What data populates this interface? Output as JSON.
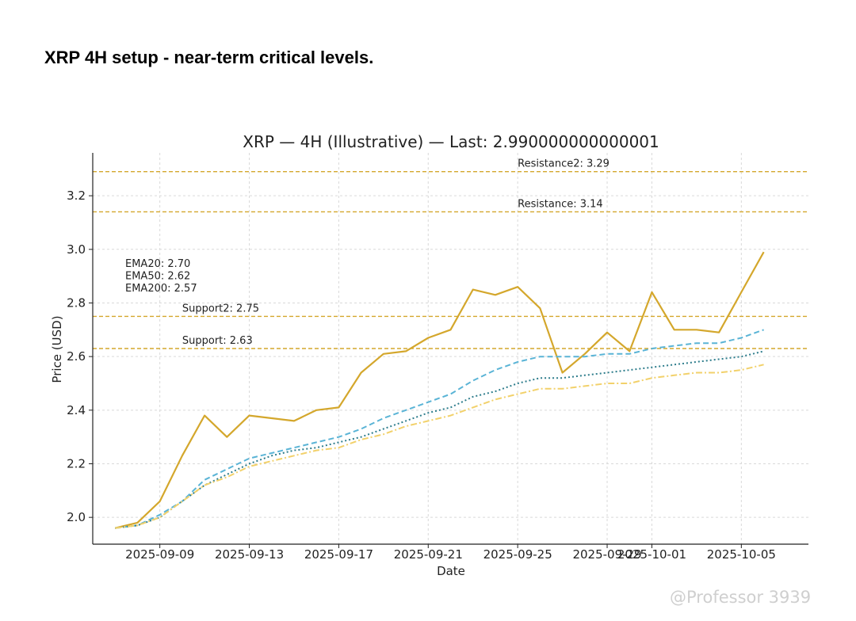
{
  "heading": "XRP 4H setup - near-term critical levels.",
  "watermark": "@Professor 3939",
  "chart_data": {
    "type": "line",
    "title": "XRP — 4H (Illustrative) — Last: 2.990000000000001",
    "xlabel": "Date",
    "ylabel": "Price (USD)",
    "ylim": [
      1.9,
      3.36
    ],
    "xlim": [
      "2025-09-06",
      "2025-10-08"
    ],
    "grid": true,
    "x_ticks": [
      "2025-09-09",
      "2025-09-13",
      "2025-09-17",
      "2025-09-21",
      "2025-09-25",
      "2025-09-29",
      "2025-10-01",
      "2025-10-05"
    ],
    "y_ticks": [
      2.0,
      2.2,
      2.4,
      2.6,
      2.8,
      3.0,
      3.2
    ],
    "x": [
      "2025-09-07",
      "2025-09-08",
      "2025-09-09",
      "2025-09-10",
      "2025-09-11",
      "2025-09-12",
      "2025-09-13",
      "2025-09-14",
      "2025-09-15",
      "2025-09-16",
      "2025-09-17",
      "2025-09-18",
      "2025-09-19",
      "2025-09-20",
      "2025-09-21",
      "2025-09-22",
      "2025-09-23",
      "2025-09-24",
      "2025-09-25",
      "2025-09-26",
      "2025-09-27",
      "2025-09-28",
      "2025-09-29",
      "2025-09-30",
      "2025-10-01",
      "2025-10-02",
      "2025-10-03",
      "2025-10-04",
      "2025-10-05",
      "2025-10-06"
    ],
    "series": [
      {
        "role": "price",
        "color": "#d4a72c",
        "dash": "solid",
        "values": [
          1.96,
          1.98,
          2.06,
          2.23,
          2.38,
          2.3,
          2.38,
          2.37,
          2.36,
          2.4,
          2.41,
          2.54,
          2.61,
          2.62,
          2.67,
          2.7,
          2.85,
          2.83,
          2.86,
          2.78,
          2.54,
          2.61,
          2.69,
          2.62,
          2.84,
          2.7,
          2.7,
          2.69,
          2.84,
          2.99
        ]
      },
      {
        "role": "ema20",
        "color": "#5ab4d6",
        "dash": "dashed",
        "values": [
          1.96,
          1.97,
          2.01,
          2.06,
          2.14,
          2.18,
          2.22,
          2.24,
          2.26,
          2.28,
          2.3,
          2.33,
          2.37,
          2.4,
          2.43,
          2.46,
          2.51,
          2.55,
          2.58,
          2.6,
          2.6,
          2.6,
          2.61,
          2.61,
          2.63,
          2.64,
          2.65,
          2.65,
          2.67,
          2.7
        ]
      },
      {
        "role": "ema50",
        "color": "#2e7d8c",
        "dash": "dotted",
        "values": [
          1.96,
          1.97,
          2.0,
          2.06,
          2.12,
          2.16,
          2.2,
          2.23,
          2.25,
          2.26,
          2.28,
          2.3,
          2.33,
          2.36,
          2.39,
          2.41,
          2.45,
          2.47,
          2.5,
          2.52,
          2.52,
          2.53,
          2.54,
          2.55,
          2.56,
          2.57,
          2.58,
          2.59,
          2.6,
          2.62
        ]
      },
      {
        "role": "ema200",
        "color": "#f2d16b",
        "dash": "dashdot",
        "values": [
          1.96,
          1.97,
          2.0,
          2.06,
          2.12,
          2.15,
          2.19,
          2.21,
          2.23,
          2.25,
          2.26,
          2.29,
          2.31,
          2.34,
          2.36,
          2.38,
          2.41,
          2.44,
          2.46,
          2.48,
          2.48,
          2.49,
          2.5,
          2.5,
          2.52,
          2.53,
          2.54,
          2.54,
          2.55,
          2.57
        ]
      }
    ],
    "levels": [
      {
        "label": "Resistance2: 3.29",
        "value": 3.29,
        "label_x": "2025-09-25"
      },
      {
        "label": "Resistance: 3.14",
        "value": 3.14,
        "label_x": "2025-09-25"
      },
      {
        "label": "Support2: 2.75",
        "value": 2.75,
        "label_x": "2025-09-10"
      },
      {
        "label": "Support: 2.63",
        "value": 2.63,
        "label_x": "2025-09-10"
      }
    ],
    "level_color": "#d4a72c",
    "ema_notes": [
      "EMA20: 2.70",
      "EMA50: 2.62",
      "EMA200: 2.57"
    ]
  }
}
